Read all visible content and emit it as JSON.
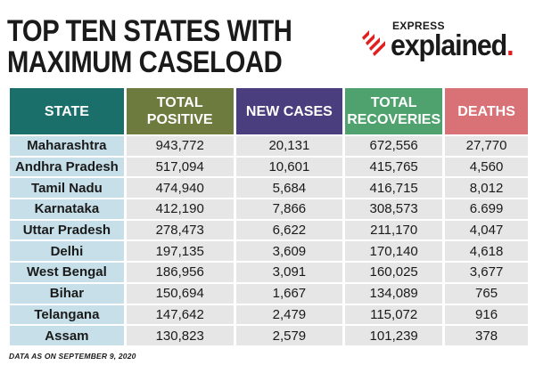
{
  "title": {
    "line1": "TOP TEN STATES WITH",
    "line2": "MAXIMUM CASELOAD"
  },
  "logo": {
    "express": "EXPRESS",
    "explained": "explained",
    "dot": ".",
    "mark_color": "#e02020"
  },
  "table": {
    "headers": {
      "state": "STATE",
      "total_positive_l1": "TOTAL",
      "total_positive_l2": "POSITIVE",
      "new_cases": "NEW CASES",
      "total_recoveries_l1": "TOTAL",
      "total_recoveries_l2": "RECOVERIES",
      "deaths": "DEATHS"
    },
    "header_colors": {
      "state": "#1a6f6b",
      "total_positive": "#6d7b3f",
      "new_cases": "#4b3e7e",
      "total_recoveries": "#4fa26e",
      "deaths": "#d97277"
    },
    "rows": [
      {
        "state": "Maharashtra",
        "total_positive": "943,772",
        "new_cases": "20,131",
        "total_recoveries": "672,556",
        "deaths": "27,770"
      },
      {
        "state": "Andhra Pradesh",
        "total_positive": "517,094",
        "new_cases": "10,601",
        "total_recoveries": "415,765",
        "deaths": "4,560"
      },
      {
        "state": "Tamil Nadu",
        "total_positive": "474,940",
        "new_cases": "5,684",
        "total_recoveries": "416,715",
        "deaths": "8,012"
      },
      {
        "state": "Karnataka",
        "total_positive": "412,190",
        "new_cases": "7,866",
        "total_recoveries": "308,573",
        "deaths": "6.699"
      },
      {
        "state": "Uttar Pradesh",
        "total_positive": "278,473",
        "new_cases": "6,622",
        "total_recoveries": "211,170",
        "deaths": "4,047"
      },
      {
        "state": "Delhi",
        "total_positive": "197,135",
        "new_cases": "3,609",
        "total_recoveries": "170,140",
        "deaths": "4,618"
      },
      {
        "state": "West Bengal",
        "total_positive": "186,956",
        "new_cases": "3,091",
        "total_recoveries": "160,025",
        "deaths": "3,677"
      },
      {
        "state": "Bihar",
        "total_positive": "150,694",
        "new_cases": "1,667",
        "total_recoveries": "134,089",
        "deaths": "765"
      },
      {
        "state": "Telangana",
        "total_positive": "147,642",
        "new_cases": "2,479",
        "total_recoveries": "115,072",
        "deaths": "916"
      },
      {
        "state": "Assam",
        "total_positive": "130,823",
        "new_cases": "2,579",
        "total_recoveries": "101,239",
        "deaths": "378"
      }
    ]
  },
  "footnote": "DATA AS ON SEPTEMBER 9, 2020"
}
